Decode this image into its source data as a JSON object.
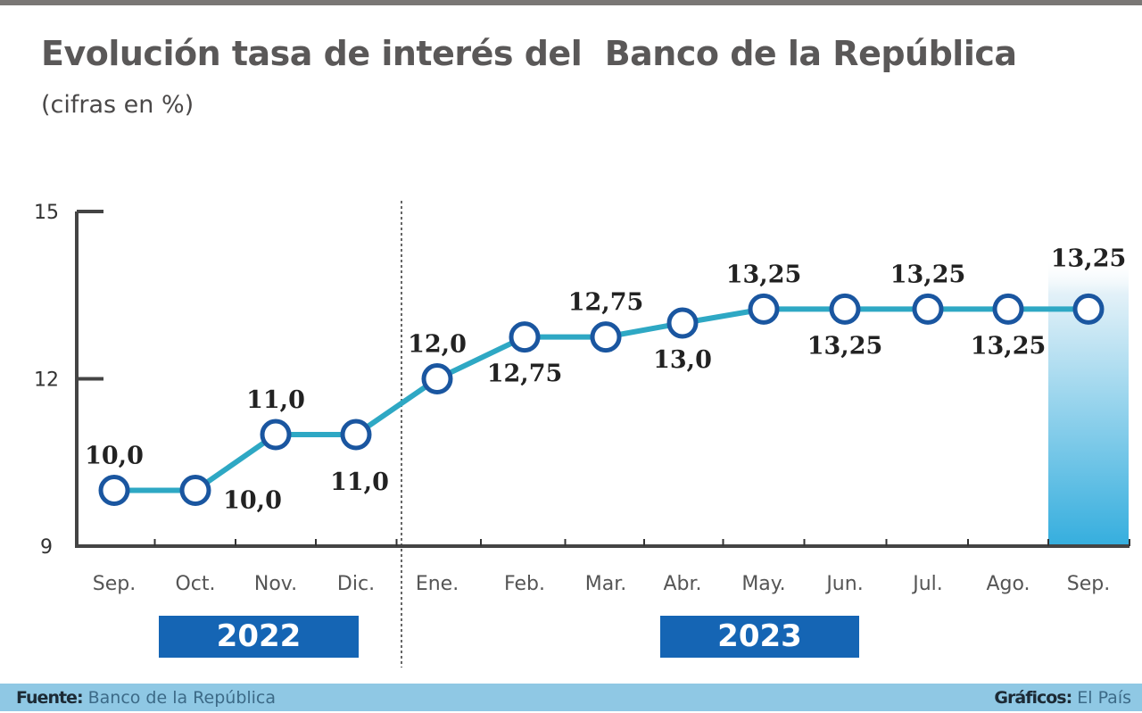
{
  "header": {
    "title": "Evolución tasa de interés del  Banco de la República",
    "subtitle": "(cifras en %)"
  },
  "colors": {
    "line": "#2ea8c4",
    "marker_stroke": "#1a56a0",
    "year_box": "#1565b4",
    "highlight_top": "#e8f4fa",
    "highlight_bottom": "#35aede",
    "footer_bg": "#8fc8e4",
    "title": "#5a5858"
  },
  "years": [
    {
      "label": "2022"
    },
    {
      "label": "2023"
    }
  ],
  "footer": {
    "source_label": "Fuente:",
    "source_value": "Banco de la República",
    "credit_label": "Gráficos:",
    "credit_value": "El País"
  },
  "chart_data": {
    "type": "line",
    "title": "Evolución tasa de interés del Banco de la República",
    "subtitle": "(cifras en %)",
    "xlabel": "",
    "ylabel": "",
    "ylim": [
      9,
      15
    ],
    "yticks": [
      9,
      12,
      15
    ],
    "grid": false,
    "legend": null,
    "categories": [
      "Sep.",
      "Oct.",
      "Nov.",
      "Dic.",
      "Ene.",
      "Feb.",
      "Mar.",
      "Abr.",
      "May.",
      "Jun.",
      "Jul.",
      "Ago.",
      "Sep."
    ],
    "year_groups": [
      {
        "year": "2022",
        "months": [
          "Sep.",
          "Oct.",
          "Nov.",
          "Dic."
        ]
      },
      {
        "year": "2023",
        "months": [
          "Ene.",
          "Feb.",
          "Mar.",
          "Abr.",
          "May.",
          "Jun.",
          "Jul.",
          "Ago.",
          "Sep."
        ]
      }
    ],
    "series": [
      {
        "name": "Tasa de interés",
        "values": [
          10.0,
          10.0,
          11.0,
          11.0,
          12.0,
          12.75,
          12.75,
          13.0,
          13.25,
          13.25,
          13.25,
          13.25,
          13.25
        ],
        "labels": [
          "10,0",
          "10,0",
          "11,0",
          "11,0",
          "12,0",
          "12,75",
          "12,75",
          "13,0",
          "13,25",
          "13,25",
          "13,25",
          "13,25",
          "13,25"
        ]
      }
    ],
    "highlight_category": "Sep. 2023"
  }
}
